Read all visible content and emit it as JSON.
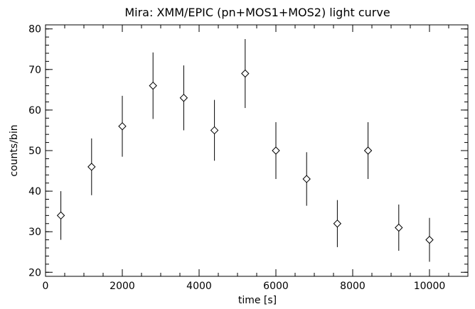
{
  "chart_data": {
    "type": "scatter",
    "title": "Mira: XMM/EPIC (pn+MOS1+MOS2) light curve",
    "xlabel": "time [s]",
    "ylabel": "counts/bin",
    "xlim": [
      0,
      11000
    ],
    "ylim": [
      19,
      81
    ],
    "x_ticks": [
      0,
      2000,
      4000,
      6000,
      8000,
      10000
    ],
    "y_ticks": [
      20,
      30,
      40,
      50,
      60,
      70,
      80
    ],
    "x_minor_step": 500,
    "y_minor_step": 2,
    "grid": false,
    "marker": "diamond",
    "color": "#000000",
    "points": [
      {
        "x": 400,
        "y": 34,
        "err": 6
      },
      {
        "x": 1200,
        "y": 46,
        "err": 7
      },
      {
        "x": 2000,
        "y": 56,
        "err": 7.5
      },
      {
        "x": 2800,
        "y": 66,
        "err": 8.2
      },
      {
        "x": 3600,
        "y": 63,
        "err": 8
      },
      {
        "x": 4400,
        "y": 55,
        "err": 7.5
      },
      {
        "x": 5200,
        "y": 69,
        "err": 8.5
      },
      {
        "x": 6000,
        "y": 50,
        "err": 7
      },
      {
        "x": 6800,
        "y": 43,
        "err": 6.6
      },
      {
        "x": 7600,
        "y": 32,
        "err": 5.8
      },
      {
        "x": 8400,
        "y": 50,
        "err": 7
      },
      {
        "x": 9200,
        "y": 31,
        "err": 5.7
      },
      {
        "x": 10000,
        "y": 28,
        "err": 5.4
      }
    ]
  }
}
